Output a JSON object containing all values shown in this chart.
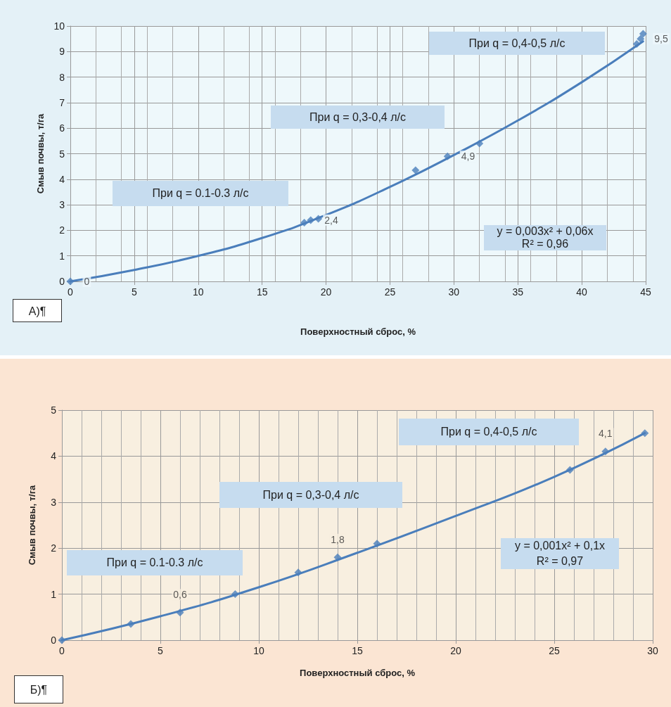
{
  "chart_data": [
    {
      "type": "scatter",
      "xlabel": "Поверхностный сброс, %",
      "ylabel": "Смыв почвы, т/га",
      "xlim": [
        0,
        45
      ],
      "xticks": [
        0,
        5,
        10,
        15,
        20,
        25,
        30,
        35,
        40,
        45
      ],
      "ylim": [
        0,
        10
      ],
      "yticks": [
        0,
        1,
        2,
        3,
        4,
        5,
        6,
        7,
        8,
        9,
        10
      ],
      "grid": true,
      "marker": "diamond",
      "annotations": [
        "При q = 0.1-0.3 л/с",
        "При q = 0,3-0,4 л/с",
        "При q = 0,4-0,5 л/с",
        "y = 0,003x² + 0,06x",
        "R² = 0,96",
        "А)¶"
      ],
      "series": [
        {
          "type": "scatter",
          "color": "#4a7ebb",
          "x": [
            0,
            18.3,
            18.8,
            19.4,
            27,
            29.5,
            32,
            44.3,
            44.6,
            44.8
          ],
          "values": [
            0,
            2.3,
            2.4,
            2.45,
            4.35,
            4.9,
            5.4,
            9.3,
            9.5,
            9.7
          ],
          "value_labels": [
            "0",
            null,
            "2,4",
            null,
            null,
            "4,9",
            null,
            null,
            "9,5",
            null
          ]
        },
        {
          "type": "line",
          "color": "#4a7ebb",
          "marker": "none",
          "x": [
            0,
            5,
            10,
            15,
            20,
            25,
            30,
            35,
            40,
            44.8
          ],
          "values": [
            0,
            0.45,
            1.0,
            1.7,
            2.6,
            3.7,
            4.95,
            6.3,
            7.8,
            9.4
          ]
        }
      ]
    },
    {
      "type": "scatter",
      "xlabel": "Поверхностный сброс, %",
      "ylabel": "Смыв почвы, т/га",
      "xlim": [
        0,
        30
      ],
      "xticks": [
        0,
        5,
        10,
        15,
        20,
        25,
        30
      ],
      "ylim": [
        0,
        5
      ],
      "yticks": [
        0,
        1,
        2,
        3,
        4,
        5
      ],
      "grid": true,
      "marker": "diamond",
      "annotations": [
        "При q = 0.1-0.3 л/с",
        "При q = 0,3-0,4 л/с",
        "При q = 0,4-0,5 л/с",
        "y = 0,001x² + 0,1x",
        "R² = 0,97",
        "Б)¶"
      ],
      "series": [
        {
          "type": "scatter",
          "color": "#4a7ebb",
          "x": [
            0,
            3.5,
            6,
            8.8,
            12,
            14,
            16,
            25.8,
            27.6,
            29.6
          ],
          "values": [
            0,
            0.35,
            0.6,
            1.0,
            1.47,
            1.8,
            2.1,
            3.7,
            4.1,
            4.5
          ],
          "value_labels": [
            null,
            null,
            "0,6",
            null,
            null,
            "1,8",
            null,
            null,
            "4,1",
            null
          ]
        },
        {
          "type": "line",
          "color": "#4a7ebb",
          "marker": "none",
          "x": [
            0,
            5,
            10,
            15,
            20,
            25,
            29.6
          ],
          "values": [
            0,
            0.52,
            1.15,
            1.9,
            2.7,
            3.55,
            4.5
          ]
        }
      ]
    }
  ]
}
